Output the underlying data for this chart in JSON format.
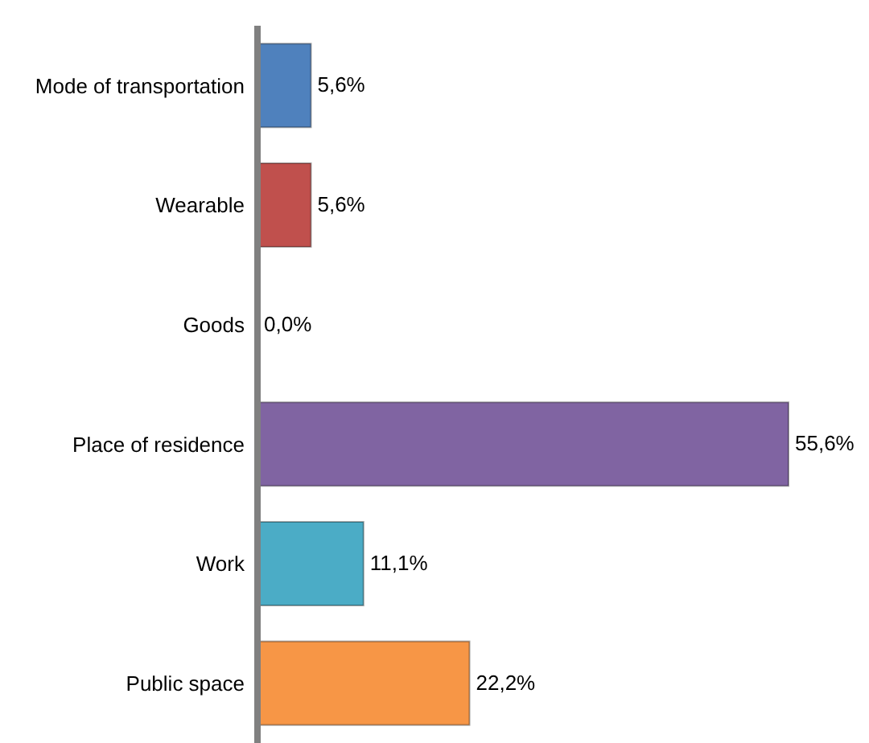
{
  "chart_data": {
    "type": "bar",
    "orientation": "horizontal",
    "categories": [
      "Mode of transportation",
      "Wearable",
      "Goods",
      "Place of residence",
      "Work",
      "Public space"
    ],
    "values": [
      5.6,
      5.6,
      0.0,
      55.6,
      11.1,
      22.2
    ],
    "colors": [
      "#4f81bd",
      "#c0504d",
      "#9bbb59",
      "#8064a2",
      "#4bacc6",
      "#f79646"
    ],
    "value_labels": [
      "5,6%",
      "5,6%",
      "0,0%",
      "55,6%",
      "11,1%",
      "22,2%"
    ],
    "tick_labels": "y"
  }
}
